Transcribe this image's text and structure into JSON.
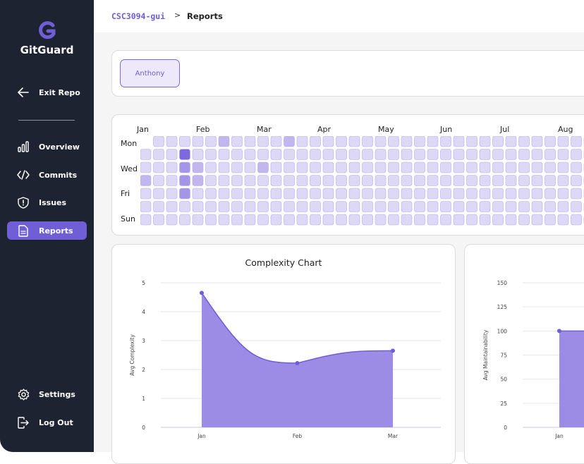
{
  "sidebar": {
    "logo_text": "GitGuard",
    "exit": {
      "label": "Exit Repo",
      "icon": "arrow-left-icon"
    },
    "items": [
      {
        "label": "Overview",
        "icon": "bar-chart-icon"
      },
      {
        "label": "Commits",
        "icon": "code-icon"
      },
      {
        "label": "Issues",
        "icon": "alert-shield-icon"
      },
      {
        "label": "Reports",
        "icon": "document-icon",
        "active": true
      }
    ],
    "settings": {
      "label": "Settings",
      "icon": "gear-icon"
    },
    "logout": {
      "label": "Log Out",
      "icon": "logout-icon"
    }
  },
  "breadcrumb": {
    "repo": "CSC3094-gui",
    "separator": ">",
    "page": "Reports"
  },
  "users": [
    "Anthony"
  ],
  "heatmap": {
    "months": [
      "Jan",
      "Feb",
      "Mar",
      "Apr",
      "May",
      "Jun",
      "Jul",
      "Aug"
    ],
    "day_labels": [
      "Mon",
      "",
      "Wed",
      "",
      "Fri",
      "",
      "Sun"
    ],
    "active_cells": [
      {
        "col": 3,
        "row": 1,
        "level": 4
      },
      {
        "col": 3,
        "row": 2,
        "level": 3
      },
      {
        "col": 3,
        "row": 3,
        "level": 3
      },
      {
        "col": 3,
        "row": 4,
        "level": 3
      },
      {
        "col": 4,
        "row": 2,
        "level": 2
      },
      {
        "col": 4,
        "row": 3,
        "level": 2
      },
      {
        "col": 6,
        "row": 0,
        "level": 2
      },
      {
        "col": 9,
        "row": 2,
        "level": 2
      },
      {
        "col": 11,
        "row": 0,
        "level": 2
      },
      {
        "col": 0,
        "row": 3,
        "level": 2
      }
    ],
    "colors": {
      "empty": "#ddd8f6",
      "level2": "#c2b6ee",
      "level3": "#a595e8",
      "level4": "#7e68dd",
      "border": "#b8ade8"
    }
  },
  "chart_data": [
    {
      "type": "area",
      "title": "Complexity Chart",
      "ylabel": "Avg Complexity",
      "xlabel": "",
      "categories": [
        "Jan",
        "Feb",
        "Mar"
      ],
      "values": [
        4.65,
        2.22,
        2.65
      ],
      "ylim": [
        0,
        5
      ],
      "yticks": [
        0,
        1,
        2,
        3,
        4,
        5
      ],
      "color": "#9d8ce6",
      "line_color": "#6f5ed6"
    },
    {
      "type": "area",
      "title": "",
      "ylabel": "Avg Maintainability",
      "xlabel": "",
      "categories": [
        "Jan"
      ],
      "values": [
        100
      ],
      "ylim": [
        0,
        150
      ],
      "yticks": [
        0,
        25,
        50,
        75,
        100,
        125,
        150
      ],
      "color": "#9d8ce6",
      "line_color": "#6f5ed6"
    }
  ]
}
